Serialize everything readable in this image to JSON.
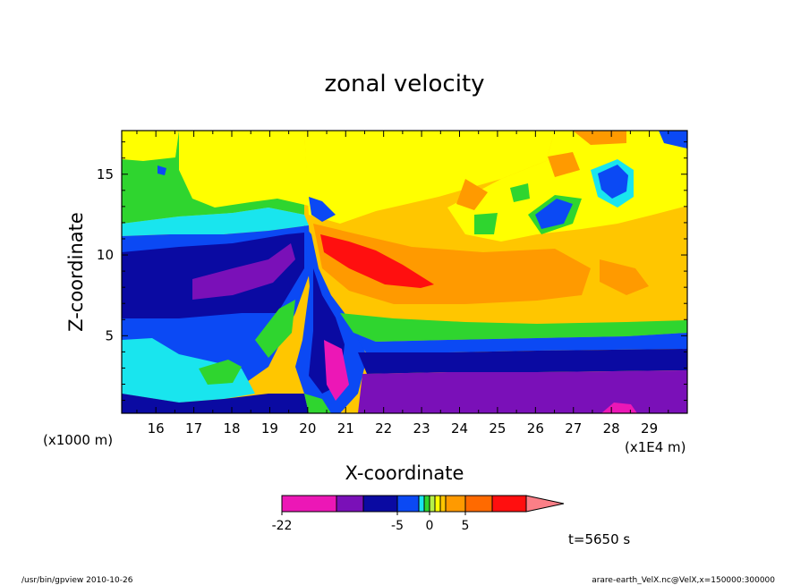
{
  "chart_data": {
    "type": "heatmap",
    "title": "zonal velocity",
    "xlabel": "X-coordinate",
    "ylabel": "Z-coordinate",
    "x_unit_left": "(x1000 m)",
    "x_unit_right": "(x1E4 m)",
    "xlim": [
      15.1,
      30.0
    ],
    "ylim": [
      0.2,
      17.7
    ],
    "x_ticks": [
      "16",
      "17",
      "18",
      "19",
      "20",
      "21",
      "22",
      "23",
      "24",
      "25",
      "26",
      "27",
      "28",
      "29"
    ],
    "y_ticks": [
      "5",
      "10",
      "15"
    ],
    "grid": false,
    "colorbar": {
      "tick_labels": [
        "-22",
        "-5",
        "0",
        "5"
      ],
      "colors": [
        "#ec17b6",
        "#7a10b8",
        "#0a0aa2",
        "#0b49f4",
        "#19e5ee",
        "#2fd52f",
        "#b6f048",
        "#ffff00",
        "#ffc600",
        "#ff9a00",
        "#ff6a00",
        "#ff0f0f",
        "#fb7f87"
      ],
      "extend": "max"
    },
    "time_label": "t=5650 s",
    "features": [
      {
        "name": "surface layer (bottom)",
        "value_range": "-10 to -5",
        "x": [
          15.1,
          30.0
        ],
        "z": [
          0.2,
          1.0
        ]
      },
      {
        "name": "lower westward flow",
        "value_range": "-18 to -10",
        "x": [
          21.5,
          30.0
        ],
        "z": [
          0.5,
          4.0
        ]
      },
      {
        "name": "left lower layer",
        "value_range": "-10 to -5",
        "x": [
          15.1,
          19.5
        ],
        "z": [
          1.0,
          9.0
        ]
      },
      {
        "name": "left core",
        "value_range": "-18 to -10",
        "x": [
          17.0,
          19.5
        ],
        "z": [
          7.0,
          10.0
        ]
      },
      {
        "name": "lee jet maximum",
        "value_range": "-22 to -18",
        "x": [
          20.5,
          21.3
        ],
        "z": [
          2.5,
          5.0
        ]
      },
      {
        "name": "upper eastward flow",
        "value_range": "5 to 10",
        "x": [
          21.0,
          30.0
        ],
        "z": [
          6.0,
          13.0
        ]
      },
      {
        "name": "upper jet maximum",
        "value_range": ">15",
        "x": [
          20.8,
          23.2
        ],
        "z": [
          8.0,
          11.0
        ]
      },
      {
        "name": "upper eddy (westward)",
        "value_range": "-10 to -5",
        "x": [
          25.5,
          26.8
        ],
        "z": [
          11.5,
          14.0
        ]
      },
      {
        "name": "upper eddy (westward)",
        "value_range": "-10 to -5",
        "x": [
          27.6,
          28.6
        ],
        "z": [
          13.5,
          15.5
        ]
      }
    ]
  },
  "footer": {
    "left": "/usr/bin/gpview   2010-10-26",
    "right": "arare-earth_VelX.nc@VelX,x=150000:300000"
  }
}
